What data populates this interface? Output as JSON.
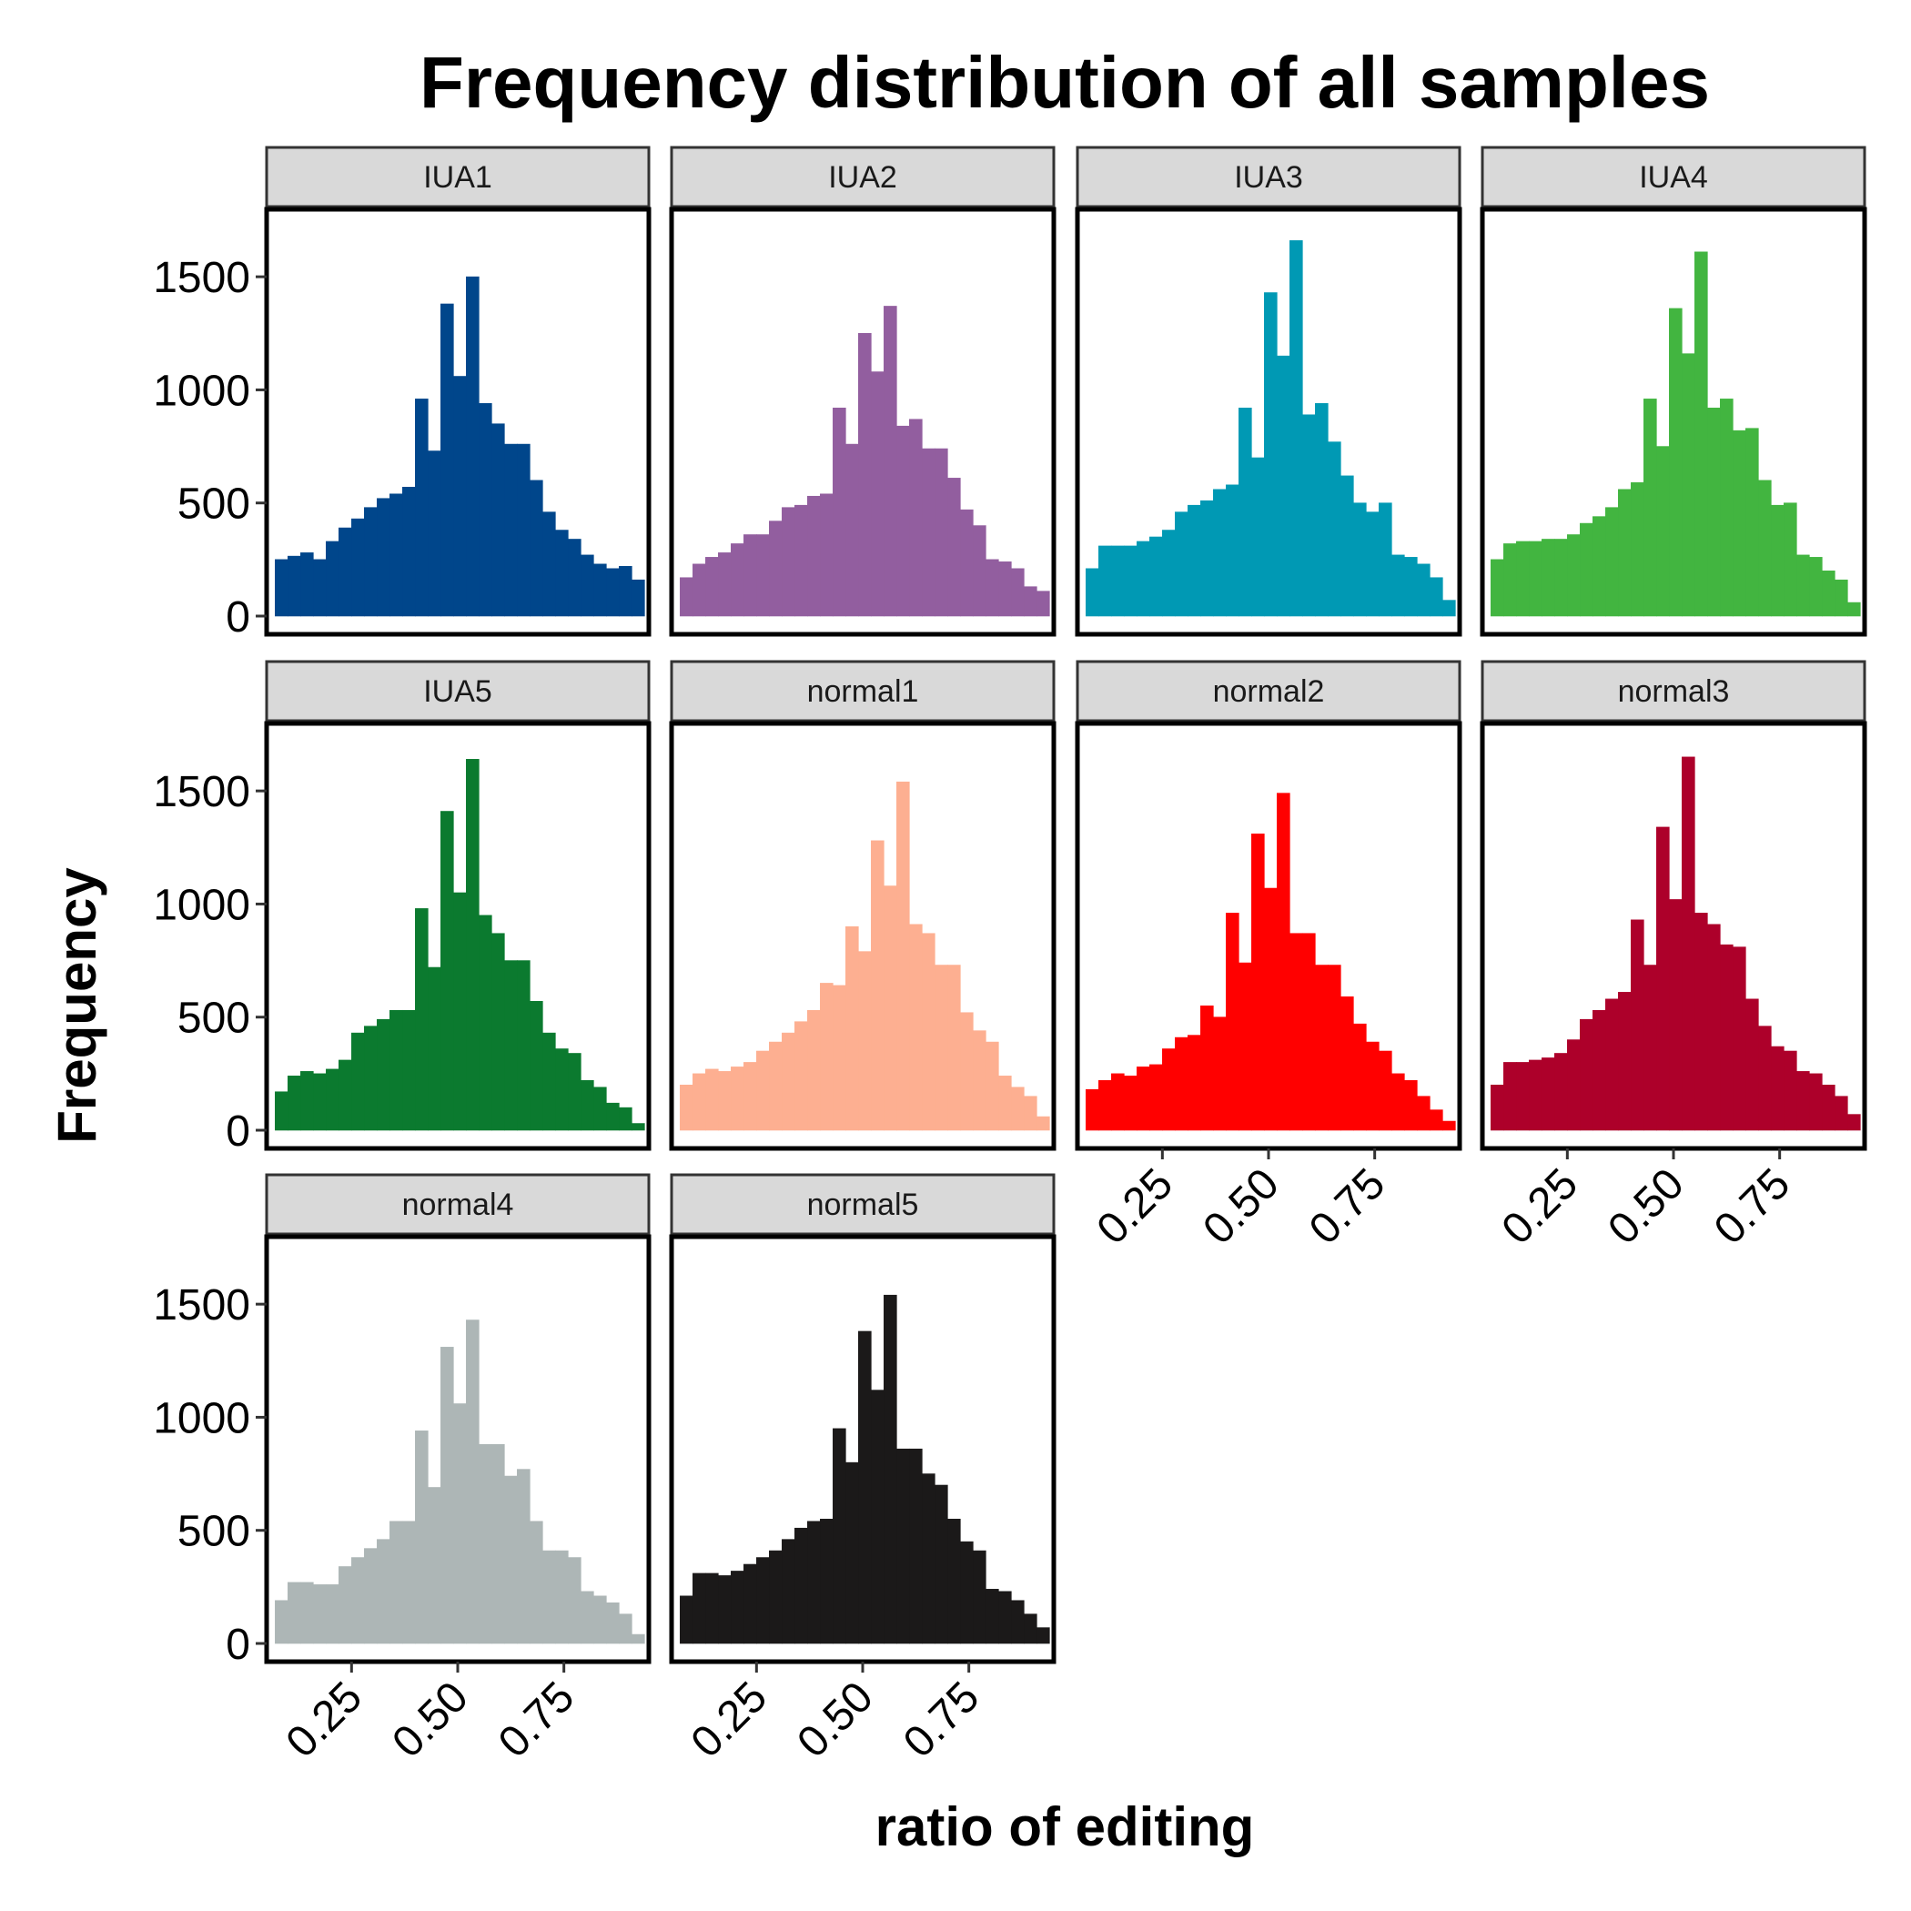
{
  "chart_data": {
    "type": "bar",
    "title": "Frequency distribution of all samples",
    "xlabel": "ratio of editing",
    "ylabel": "Frequency",
    "xlim": [
      0.05,
      0.95
    ],
    "ylim": [
      0,
      1750
    ],
    "x_ticks": [
      "0.25",
      "0.50",
      "0.75"
    ],
    "y_ticks": [
      "0",
      "500",
      "1000",
      "1500"
    ],
    "bins": [
      0.085,
      0.115,
      0.145,
      0.175,
      0.205,
      0.235,
      0.265,
      0.295,
      0.325,
      0.355,
      0.385,
      0.415,
      0.445,
      0.475,
      0.505,
      0.535,
      0.565,
      0.595,
      0.625,
      0.655,
      0.685,
      0.715,
      0.745,
      0.775,
      0.805,
      0.835,
      0.865,
      0.895,
      0.925
    ],
    "bin_width": 0.03,
    "panels": [
      {
        "name": "IUA1",
        "color": "#00468B",
        "values": [
          250,
          265,
          280,
          250,
          330,
          390,
          430,
          480,
          520,
          540,
          570,
          960,
          730,
          1380,
          1060,
          1500,
          940,
          850,
          760,
          760,
          600,
          460,
          380,
          340,
          270,
          230,
          210,
          220,
          160
        ]
      },
      {
        "name": "IUA2",
        "color": "#925E9F",
        "values": [
          170,
          230,
          260,
          280,
          320,
          360,
          360,
          420,
          480,
          490,
          530,
          540,
          920,
          760,
          1250,
          1080,
          1370,
          840,
          870,
          740,
          740,
          610,
          470,
          400,
          250,
          240,
          210,
          130,
          110
        ]
      },
      {
        "name": "IUA3",
        "color": "#0099B4",
        "values": [
          210,
          310,
          310,
          310,
          330,
          350,
          380,
          460,
          490,
          510,
          560,
          580,
          920,
          700,
          1430,
          1150,
          1660,
          890,
          940,
          770,
          620,
          500,
          460,
          500,
          270,
          260,
          230,
          170,
          70
        ]
      },
      {
        "name": "IUA4",
        "color": "#42B540",
        "values": [
          250,
          320,
          330,
          330,
          340,
          340,
          360,
          410,
          440,
          480,
          560,
          590,
          960,
          750,
          1360,
          1160,
          1610,
          920,
          960,
          820,
          830,
          600,
          490,
          500,
          270,
          260,
          200,
          160,
          60
        ]
      },
      {
        "name": "IUA5",
        "color": "#0B7A2F",
        "values": [
          170,
          240,
          260,
          250,
          270,
          310,
          430,
          460,
          490,
          530,
          530,
          980,
          720,
          1410,
          1050,
          1640,
          950,
          870,
          750,
          750,
          570,
          430,
          360,
          340,
          220,
          190,
          120,
          100,
          30
        ]
      },
      {
        "name": "normal1",
        "color": "#FDAF91",
        "values": [
          200,
          250,
          270,
          260,
          280,
          300,
          350,
          390,
          430,
          480,
          530,
          650,
          640,
          900,
          790,
          1280,
          1080,
          1540,
          910,
          870,
          730,
          730,
          520,
          440,
          390,
          240,
          190,
          150,
          60
        ]
      },
      {
        "name": "normal2",
        "color": "#FF0000",
        "values": [
          180,
          220,
          250,
          240,
          280,
          290,
          360,
          410,
          420,
          550,
          500,
          960,
          740,
          1310,
          1070,
          1490,
          870,
          870,
          730,
          730,
          590,
          470,
          390,
          350,
          250,
          220,
          150,
          90,
          40
        ]
      },
      {
        "name": "normal3",
        "color": "#AD002A",
        "values": [
          200,
          300,
          300,
          310,
          320,
          340,
          400,
          490,
          530,
          580,
          610,
          930,
          730,
          1340,
          1020,
          1650,
          960,
          910,
          820,
          810,
          580,
          460,
          370,
          350,
          260,
          250,
          200,
          150,
          70
        ]
      },
      {
        "name": "normal4",
        "color": "#ADB6B6",
        "values": [
          190,
          270,
          270,
          260,
          260,
          340,
          380,
          420,
          460,
          540,
          540,
          940,
          690,
          1310,
          1060,
          1430,
          880,
          880,
          740,
          770,
          540,
          410,
          410,
          380,
          230,
          210,
          180,
          130,
          40
        ]
      },
      {
        "name": "normal5",
        "color": "#1B1919",
        "values": [
          210,
          310,
          310,
          300,
          320,
          350,
          380,
          410,
          460,
          510,
          540,
          550,
          950,
          800,
          1380,
          1120,
          1540,
          860,
          860,
          750,
          700,
          550,
          450,
          410,
          240,
          230,
          190,
          130,
          70
        ]
      }
    ]
  }
}
